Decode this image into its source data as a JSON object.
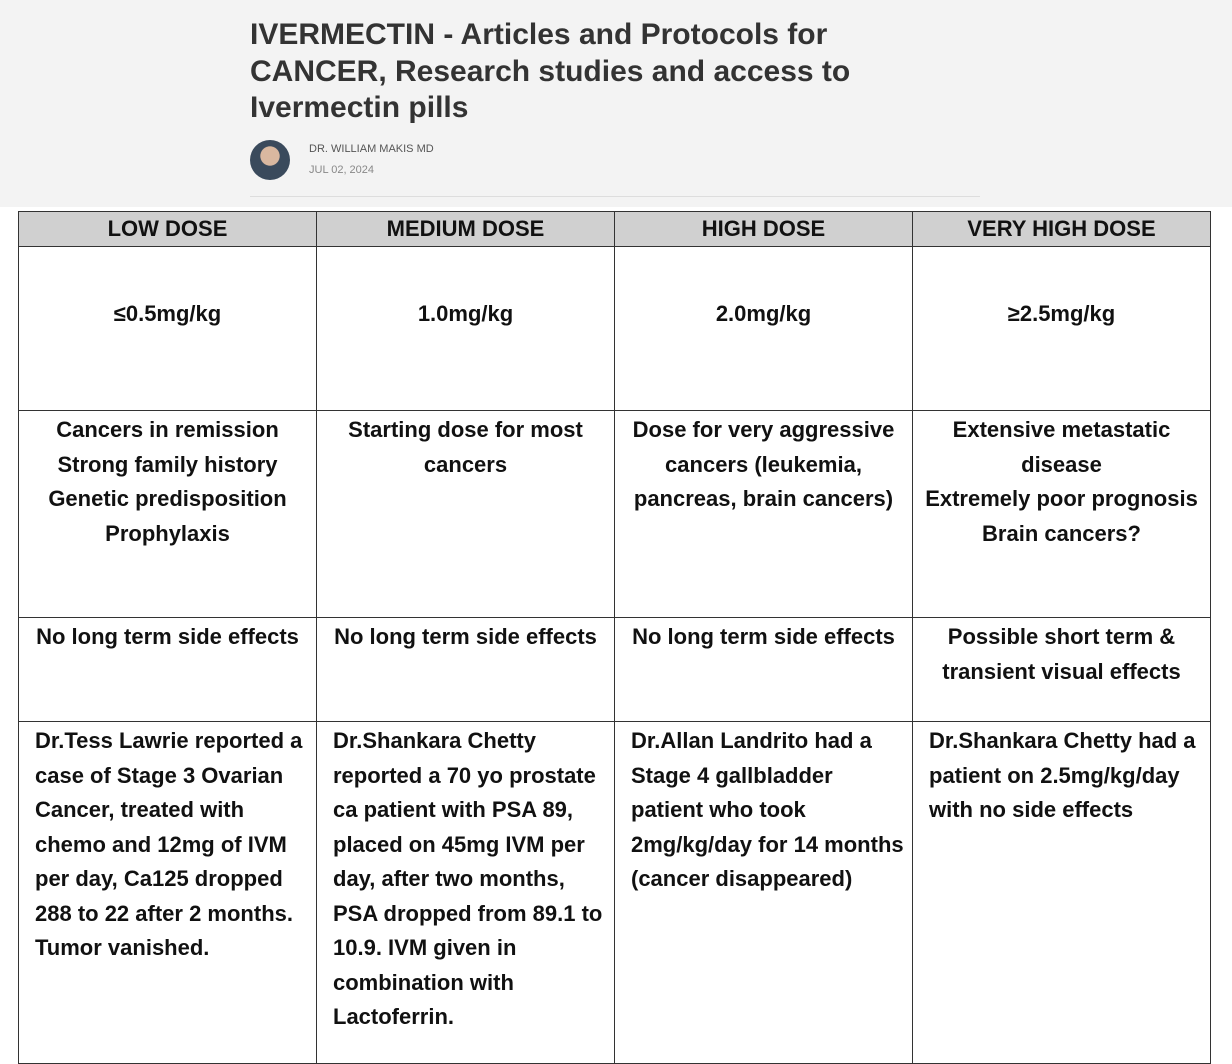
{
  "header": {
    "title": "IVERMECTIN - Articles and Protocols for CANCER, Research studies and access to Ivermectin pills",
    "author": "DR. WILLIAM MAKIS MD",
    "date": "JUL 02, 2024"
  },
  "table": {
    "columns": [
      "LOW DOSE",
      "MEDIUM DOSE",
      "HIGH DOSE",
      "VERY HIGH DOSE"
    ],
    "rows": [
      [
        [
          "≤0.5mg/kg"
        ],
        [
          "1.0mg/kg"
        ],
        [
          "2.0mg/kg"
        ],
        [
          "≥2.5mg/kg"
        ]
      ],
      [
        [
          "Cancers in remission",
          "Strong family history",
          "Genetic predisposition",
          "Prophylaxis"
        ],
        [
          "Starting dose for most cancers"
        ],
        [
          "Dose for very aggressive cancers (leukemia, pancreas, brain cancers)"
        ],
        [
          "Extensive metastatic disease",
          "Extremely poor prognosis",
          "Brain cancers?"
        ]
      ],
      [
        [
          "No long term side effects"
        ],
        [
          "No long term side effects"
        ],
        [
          "No long term side effects"
        ],
        [
          "Possible short term & transient visual effects"
        ]
      ],
      [
        [
          "Dr.Tess Lawrie reported a case of Stage 3 Ovarian Cancer, treated with chemo and 12mg of IVM per day, Ca125 dropped 288 to 22 after 2 months. Tumor vanished."
        ],
        [
          "Dr.Shankara Chetty reported a 70 yo prostate ca patient with PSA 89, placed on 45mg IVM per day, after two months, PSA dropped from 89.1 to 10.9. IVM given in combination with Lactoferrin."
        ],
        [
          "Dr.Allan Landrito had a Stage 4 gallbladder patient who took 2mg/kg/day for 14 months (cancer disappeared)"
        ],
        [
          "Dr.Shankara Chetty had a patient on 2.5mg/kg/day with no side effects"
        ]
      ]
    ]
  }
}
